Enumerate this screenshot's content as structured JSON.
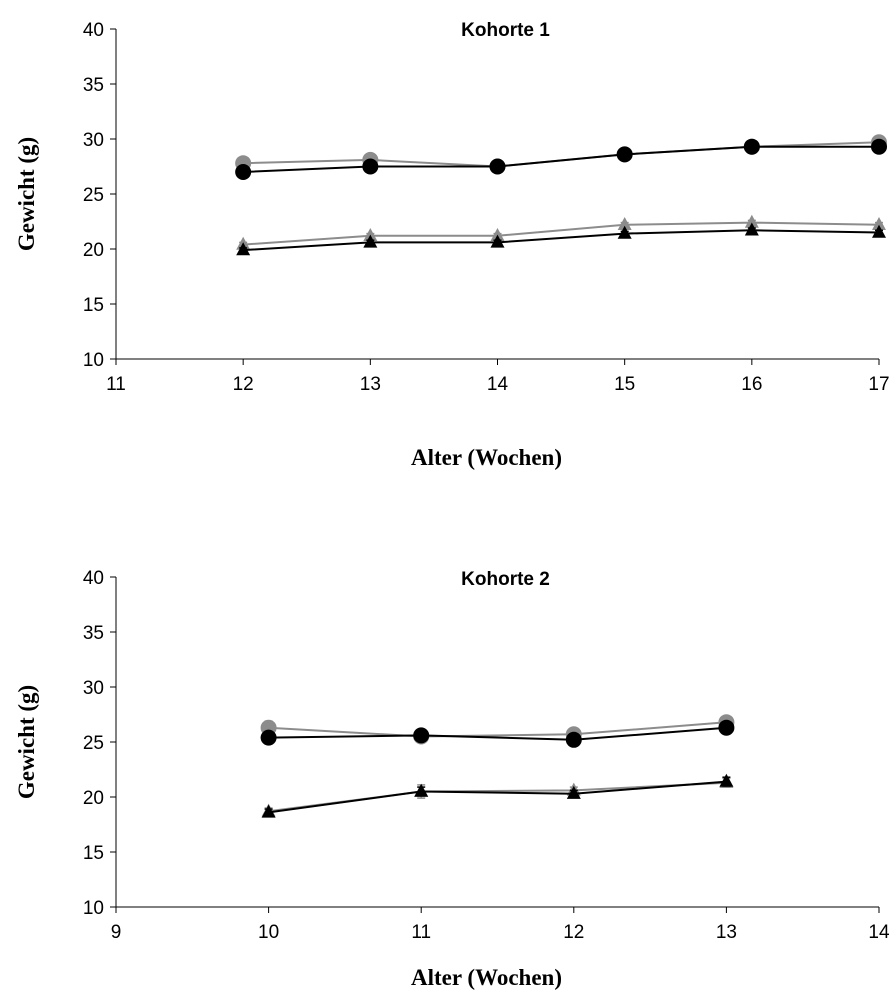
{
  "chart_data": [
    {
      "type": "line",
      "title": "Kohorte 1",
      "xlabel": "Alter (Wochen)",
      "ylabel": "Gewicht (g)",
      "xlim": [
        11,
        17
      ],
      "ylim": [
        10,
        40
      ],
      "xticks": [
        11,
        12,
        13,
        14,
        15,
        16,
        17
      ],
      "yticks": [
        10,
        15,
        20,
        25,
        30,
        35,
        40
      ],
      "grid": false,
      "x": [
        12,
        13,
        14,
        15,
        16,
        17
      ],
      "series": [
        {
          "marker": "circle",
          "color": "#8c8c8c",
          "values": [
            27.8,
            28.1,
            27.5,
            28.6,
            29.3,
            29.7
          ],
          "errors": [
            0.2,
            0.2,
            0.2,
            0.2,
            0.2,
            0.2
          ]
        },
        {
          "marker": "circle",
          "color": "#000000",
          "values": [
            27.0,
            27.5,
            27.5,
            28.6,
            29.3,
            29.3
          ],
          "errors": [
            0.3,
            0.3,
            0.3,
            0.3,
            0.3,
            0.3
          ]
        },
        {
          "marker": "triangle",
          "color": "#8c8c8c",
          "values": [
            20.4,
            21.2,
            21.2,
            22.2,
            22.4,
            22.2
          ],
          "errors": [
            0.2,
            0.2,
            0.2,
            0.2,
            0.2,
            0.2
          ]
        },
        {
          "marker": "triangle",
          "color": "#000000",
          "values": [
            19.9,
            20.6,
            20.6,
            21.4,
            21.7,
            21.5
          ],
          "errors": [
            0.2,
            0.2,
            0.2,
            0.2,
            0.2,
            0.2
          ]
        }
      ]
    },
    {
      "type": "line",
      "title": "Kohorte 2",
      "xlabel": "Alter (Wochen)",
      "ylabel": "Gewicht (g)",
      "xlim": [
        9,
        14
      ],
      "ylim": [
        10,
        40
      ],
      "xticks": [
        9,
        10,
        11,
        12,
        13,
        14
      ],
      "yticks": [
        10,
        15,
        20,
        25,
        30,
        35,
        40
      ],
      "grid": false,
      "x": [
        10,
        11,
        12,
        13
      ],
      "series": [
        {
          "marker": "circle",
          "color": "#8c8c8c",
          "values": [
            26.3,
            25.5,
            25.7,
            26.8
          ],
          "errors": [
            0.6,
            0.3,
            0.3,
            0.3
          ]
        },
        {
          "marker": "circle",
          "color": "#000000",
          "values": [
            25.4,
            25.6,
            25.2,
            26.3
          ],
          "errors": [
            0.5,
            0.3,
            0.3,
            0.3
          ]
        },
        {
          "marker": "triangle",
          "color": "#8c8c8c",
          "values": [
            18.7,
            20.5,
            20.6,
            21.3
          ],
          "errors": [
            0.3,
            0.6,
            0.3,
            0.4
          ]
        },
        {
          "marker": "triangle",
          "color": "#000000",
          "values": [
            18.6,
            20.5,
            20.3,
            21.4
          ],
          "errors": [
            0.3,
            0.4,
            0.3,
            0.4
          ]
        }
      ]
    }
  ]
}
